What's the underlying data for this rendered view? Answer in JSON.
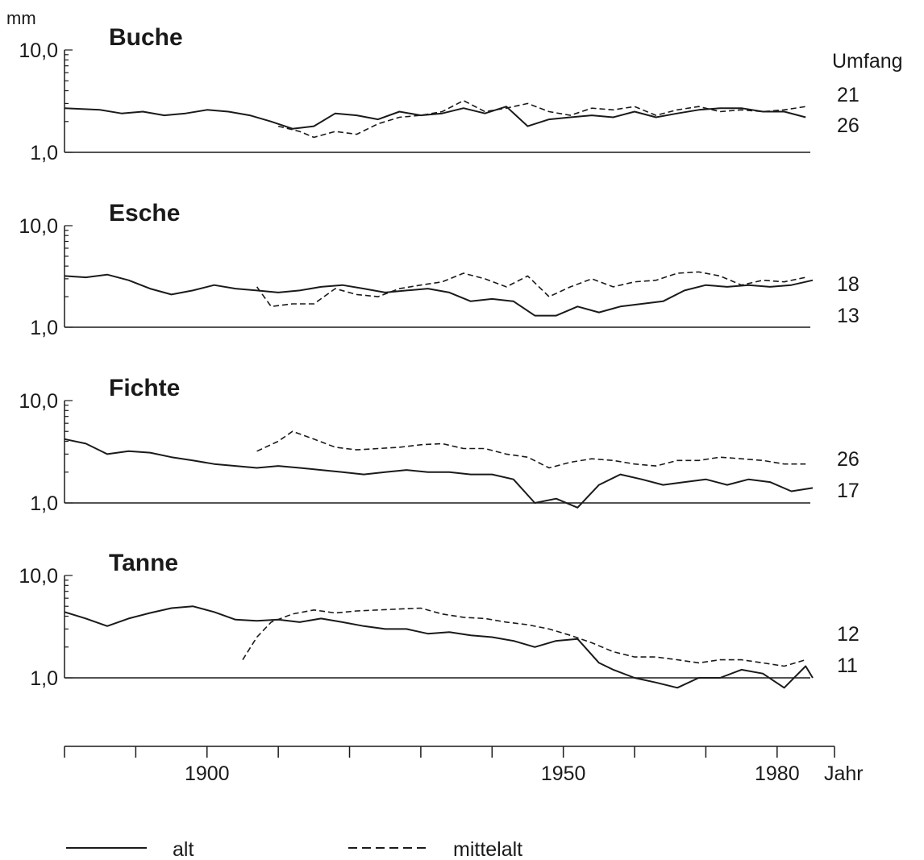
{
  "chart_data": {
    "type": "line",
    "y_unit": "mm",
    "y_scale": "log",
    "ylim": [
      1.0,
      10.0
    ],
    "y_tick_labels": [
      "10,0",
      "1,0"
    ],
    "xlim": [
      1880,
      1985
    ],
    "x_ticks": [
      1880,
      1890,
      1900,
      1910,
      1920,
      1930,
      1940,
      1950,
      1960,
      1970,
      1980
    ],
    "x_tick_labels": [
      {
        "x": 1900,
        "label": "1900"
      },
      {
        "x": 1950,
        "label": "1950"
      },
      {
        "x": 1980,
        "label": "1980"
      }
    ],
    "x_axis_label": "Jahr",
    "right_header": "Umfang",
    "legend": [
      {
        "label": "alt",
        "style": "solid"
      },
      {
        "label": "mittelalt",
        "style": "dashed"
      }
    ],
    "panels": [
      {
        "name": "Buche",
        "right_labels": [
          "21",
          "26"
        ],
        "series": [
          {
            "legend": "alt",
            "x": [
              1880,
              1885,
              1888,
              1891,
              1894,
              1897,
              1900,
              1903,
              1906,
              1909,
              1912,
              1915,
              1918,
              1921,
              1924,
              1927,
              1930,
              1933,
              1936,
              1939,
              1942,
              1945,
              1948,
              1951,
              1954,
              1957,
              1960,
              1963,
              1966,
              1969,
              1972,
              1975,
              1978,
              1981,
              1984
            ],
            "y": [
              2.7,
              2.6,
              2.4,
              2.5,
              2.3,
              2.4,
              2.6,
              2.5,
              2.3,
              2.0,
              1.7,
              1.8,
              2.4,
              2.3,
              2.1,
              2.5,
              2.3,
              2.4,
              2.7,
              2.4,
              2.8,
              1.8,
              2.1,
              2.2,
              2.3,
              2.2,
              2.5,
              2.2,
              2.4,
              2.6,
              2.7,
              2.7,
              2.5,
              2.5,
              2.2
            ]
          },
          {
            "legend": "mittelalt",
            "x": [
              1910,
              1913,
              1915,
              1918,
              1921,
              1924,
              1927,
              1930,
              1933,
              1936,
              1939,
              1942,
              1945,
              1948,
              1951,
              1954,
              1957,
              1960,
              1963,
              1966,
              1969,
              1972,
              1975,
              1978,
              1981,
              1984
            ],
            "y": [
              1.8,
              1.6,
              1.4,
              1.6,
              1.5,
              1.9,
              2.2,
              2.3,
              2.5,
              3.2,
              2.5,
              2.7,
              3.0,
              2.5,
              2.3,
              2.7,
              2.6,
              2.8,
              2.3,
              2.6,
              2.8,
              2.5,
              2.6,
              2.5,
              2.6,
              2.8
            ]
          }
        ]
      },
      {
        "name": "Esche",
        "right_labels": [
          "18",
          "13"
        ],
        "series": [
          {
            "legend": "alt",
            "x": [
              1880,
              1883,
              1886,
              1889,
              1892,
              1895,
              1898,
              1901,
              1904,
              1907,
              1910,
              1913,
              1916,
              1919,
              1922,
              1925,
              1928,
              1931,
              1934,
              1937,
              1940,
              1943,
              1946,
              1949,
              1952,
              1955,
              1958,
              1961,
              1964,
              1967,
              1970,
              1973,
              1976,
              1979,
              1982,
              1985
            ],
            "y": [
              3.2,
              3.1,
              3.3,
              2.9,
              2.4,
              2.1,
              2.3,
              2.6,
              2.4,
              2.3,
              2.2,
              2.3,
              2.5,
              2.6,
              2.4,
              2.2,
              2.3,
              2.4,
              2.2,
              1.8,
              1.9,
              1.8,
              1.3,
              1.3,
              1.6,
              1.4,
              1.6,
              1.7,
              1.8,
              2.3,
              2.6,
              2.5,
              2.6,
              2.5,
              2.6,
              2.9
            ]
          },
          {
            "legend": "mittelalt",
            "x": [
              1907,
              1909,
              1912,
              1915,
              1918,
              1921,
              1924,
              1927,
              1930,
              1933,
              1936,
              1939,
              1942,
              1945,
              1948,
              1951,
              1954,
              1957,
              1960,
              1963,
              1966,
              1969,
              1972,
              1975,
              1978,
              1981,
              1984
            ],
            "y": [
              2.5,
              1.6,
              1.7,
              1.7,
              2.4,
              2.1,
              2.0,
              2.4,
              2.6,
              2.8,
              3.4,
              3.0,
              2.5,
              3.2,
              2.0,
              2.5,
              3.0,
              2.5,
              2.8,
              2.9,
              3.4,
              3.5,
              3.2,
              2.6,
              2.9,
              2.8,
              3.1
            ]
          }
        ]
      },
      {
        "name": "Fichte",
        "right_labels": [
          "26",
          "17"
        ],
        "series": [
          {
            "legend": "alt",
            "x": [
              1880,
              1883,
              1886,
              1889,
              1892,
              1895,
              1898,
              1901,
              1904,
              1907,
              1910,
              1913,
              1916,
              1919,
              1922,
              1925,
              1928,
              1931,
              1934,
              1937,
              1940,
              1943,
              1946,
              1949,
              1952,
              1955,
              1958,
              1961,
              1964,
              1967,
              1970,
              1973,
              1976,
              1979,
              1982,
              1985
            ],
            "y": [
              4.2,
              3.8,
              3.0,
              3.2,
              3.1,
              2.8,
              2.6,
              2.4,
              2.3,
              2.2,
              2.3,
              2.2,
              2.1,
              2.0,
              1.9,
              2.0,
              2.1,
              2.0,
              2.0,
              1.9,
              1.9,
              1.7,
              1.0,
              1.1,
              0.9,
              1.5,
              1.9,
              1.7,
              1.5,
              1.6,
              1.7,
              1.5,
              1.7,
              1.6,
              1.3,
              1.4
            ]
          },
          {
            "legend": "mittelalt",
            "x": [
              1907,
              1910,
              1912,
              1915,
              1918,
              1921,
              1924,
              1927,
              1930,
              1933,
              1936,
              1939,
              1942,
              1945,
              1948,
              1951,
              1954,
              1957,
              1960,
              1963,
              1966,
              1969,
              1972,
              1975,
              1978,
              1981,
              1984
            ],
            "y": [
              3.2,
              4.0,
              5.0,
              4.2,
              3.5,
              3.3,
              3.4,
              3.5,
              3.7,
              3.8,
              3.4,
              3.4,
              3.0,
              2.8,
              2.2,
              2.5,
              2.7,
              2.6,
              2.4,
              2.3,
              2.6,
              2.6,
              2.8,
              2.7,
              2.6,
              2.4,
              2.4
            ]
          }
        ]
      },
      {
        "name": "Tanne",
        "right_labels": [
          "12",
          "11"
        ],
        "series": [
          {
            "legend": "alt",
            "x": [
              1880,
              1883,
              1886,
              1889,
              1892,
              1895,
              1898,
              1901,
              1904,
              1907,
              1910,
              1913,
              1916,
              1919,
              1922,
              1925,
              1928,
              1931,
              1934,
              1937,
              1940,
              1943,
              1946,
              1949,
              1952,
              1955,
              1957,
              1960,
              1963,
              1966,
              1969,
              1972,
              1975,
              1978,
              1981,
              1984,
              1985
            ],
            "y": [
              4.4,
              3.8,
              3.2,
              3.8,
              4.3,
              4.8,
              5.0,
              4.4,
              3.7,
              3.6,
              3.7,
              3.5,
              3.8,
              3.5,
              3.2,
              3.0,
              3.0,
              2.7,
              2.8,
              2.6,
              2.5,
              2.3,
              2.0,
              2.3,
              2.4,
              1.4,
              1.2,
              1.0,
              0.9,
              0.8,
              1.0,
              1.0,
              1.2,
              1.1,
              0.8,
              1.3,
              1.0
            ]
          },
          {
            "legend": "mittelalt",
            "x": [
              1905,
              1907,
              1909,
              1912,
              1915,
              1918,
              1921,
              1924,
              1927,
              1930,
              1933,
              1936,
              1939,
              1942,
              1945,
              1948,
              1951,
              1954,
              1957,
              1960,
              1963,
              1966,
              1969,
              1972,
              1975,
              1978,
              1981,
              1984
            ],
            "y": [
              1.5,
              2.5,
              3.5,
              4.2,
              4.6,
              4.3,
              4.5,
              4.6,
              4.7,
              4.8,
              4.2,
              3.9,
              3.8,
              3.5,
              3.3,
              3.0,
              2.6,
              2.2,
              1.8,
              1.6,
              1.6,
              1.5,
              1.4,
              1.5,
              1.5,
              1.4,
              1.3,
              1.5
            ]
          }
        ]
      }
    ]
  }
}
